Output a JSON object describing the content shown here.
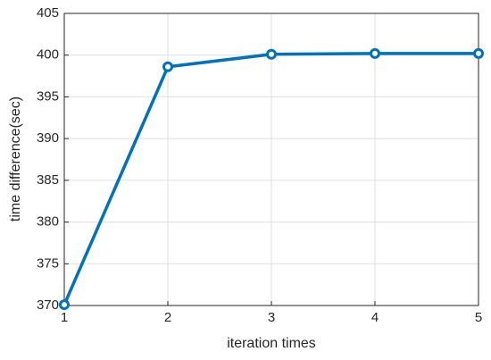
{
  "chart_data": {
    "type": "line",
    "x_label": "iteration times",
    "y_label": "time difference(sec)",
    "x": [
      1,
      2,
      3,
      4,
      5
    ],
    "series": [
      {
        "color": "#0072bd",
        "values": [
          370.1,
          398.6,
          400.1,
          400.2,
          400.2
        ]
      }
    ],
    "xlim": [
      1,
      5
    ],
    "xticks": [
      1,
      2,
      3,
      4,
      5
    ],
    "ylim": [
      370,
      405
    ],
    "yticks": [
      370,
      375,
      380,
      385,
      390,
      395,
      400,
      405
    ],
    "grid": true,
    "markers": "circle"
  }
}
